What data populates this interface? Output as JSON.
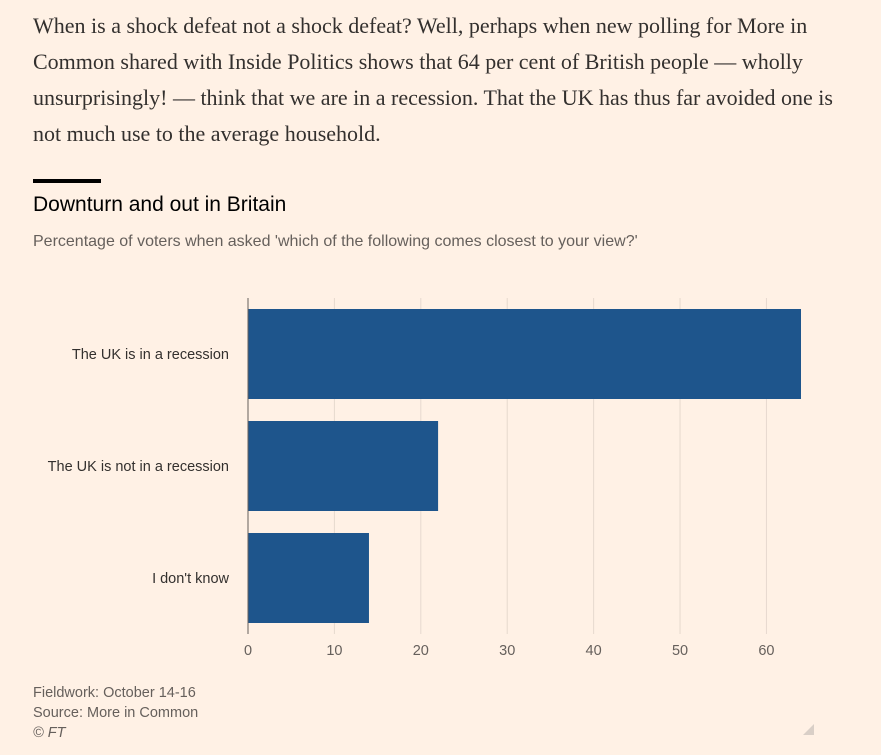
{
  "article": {
    "paragraph": "When is a shock defeat not a shock defeat? Well, perhaps when new polling for More in Common shared with Inside Politics shows that 64 per cent of British people — wholly unsurprisingly! — think that we are in a recession. That the UK has thus far avoided one is not much use to the average household."
  },
  "chart_data": {
    "type": "bar",
    "orientation": "horizontal",
    "title": "Downturn and out in Britain",
    "subtitle": "Percentage of voters when asked 'which of the following comes closest to your view?'",
    "categories": [
      "The UK is in a recession",
      "The UK is not in a recession",
      "I don't know"
    ],
    "values": [
      64,
      22,
      14
    ],
    "xlim": [
      0,
      64
    ],
    "xticks": [
      0,
      10,
      20,
      30,
      40,
      50,
      60
    ],
    "grid": true,
    "bar_color": "#1e558c",
    "xlabel": "",
    "ylabel": ""
  },
  "footer": {
    "fieldwork": "Fieldwork: October 14-16",
    "source": "Source: More in Common",
    "copyright": "© FT"
  },
  "icons": {
    "resize": "resize-corner-icon"
  }
}
